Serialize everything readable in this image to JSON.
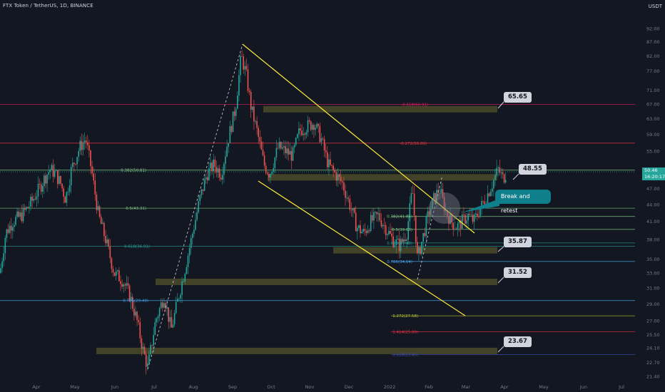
{
  "header": {
    "title": "FTX Token / TetherUS, 1D, BINANCE",
    "currency": "USDT"
  },
  "colors": {
    "background": "#131722",
    "up": "#26a69a",
    "down": "#ef5350",
    "wedge": "#ffeb3b",
    "zone": "#4a4a28",
    "callout_bg": "#d1d4dc",
    "bubble_bg": "#0f7f8c"
  },
  "chart_data": {
    "type": "candlestick",
    "title": "FTX Token / TetherUS, 1D, BINANCE",
    "x_labels": [
      "Apr",
      "May",
      "Jun",
      "Jul",
      "Aug",
      "Sep",
      "Oct",
      "Nov",
      "Dec",
      "2022",
      "Feb",
      "Mar",
      "Apr",
      "May",
      "Jun",
      "Jul"
    ],
    "y_scale": "log",
    "y_ticks": [
      "92.00",
      "87.00",
      "82.00",
      "77.00",
      "71.00",
      "67.00",
      "63.00",
      "59.00",
      "55.00",
      "51.00",
      "47.00",
      "44.00",
      "41.00",
      "38.00",
      "35.00",
      "33.00",
      "31.00",
      "29.00",
      "27.00",
      "25.50",
      "24.10",
      "22.70",
      "21.40"
    ],
    "last_price": "50.46",
    "countdown": "16:20:17",
    "fib_levels": [
      {
        "label": "0.382(50.81)",
        "value": 50.81,
        "color": "#81c784"
      },
      {
        "label": "0.5(43.31)",
        "value": 43.31,
        "color": "#81c784"
      },
      {
        "label": "0.618(36.91)",
        "value": 36.91,
        "color": "#26a69a"
      },
      {
        "label": "0.786(29.40)",
        "value": 29.4,
        "color": "#42a5f5"
      },
      {
        "label": "-0.618(66.91)",
        "value": 66.91,
        "color": "#e91e63"
      },
      {
        "label": "-0.272(56.89)",
        "value": 56.89,
        "color": "#f23645"
      },
      {
        "label": "0.382(41.84)",
        "value": 41.84,
        "color": "#81c784"
      },
      {
        "label": "0.5(39.63)",
        "value": 39.63,
        "color": "#81c784"
      },
      {
        "label": "0.618(37.43)",
        "value": 37.43,
        "color": "#26a69a"
      },
      {
        "label": "0.786(34.64)",
        "value": 34.64,
        "color": "#42a5f5"
      },
      {
        "label": "1.272(27.58)",
        "value": 27.58,
        "color": "#c0ca33"
      },
      {
        "label": "1.414(25.80)",
        "value": 25.8,
        "color": "#f23645"
      },
      {
        "label": "1.618(23.45)",
        "value": 23.45,
        "color": "#3f51b5"
      }
    ],
    "callouts": [
      "65.65",
      "48.55",
      "35.87",
      "31.52",
      "23.67"
    ],
    "annotation": "Break and retest"
  }
}
